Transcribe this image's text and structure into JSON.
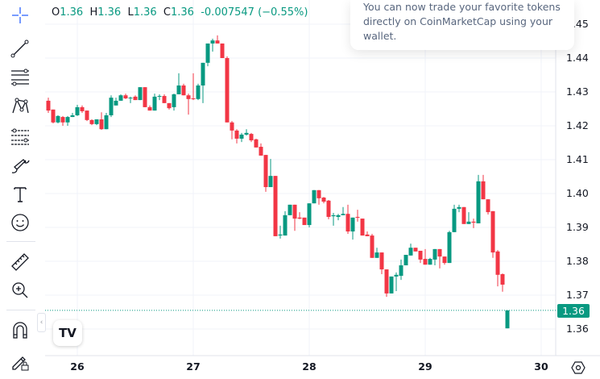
{
  "legend": {
    "o_label": "O",
    "o": "1.36",
    "h_label": "H",
    "h": "1.36",
    "l_label": "L",
    "l": "1.36",
    "c_label": "C",
    "c": "1.36",
    "change": "-0.007547 (−0.55%)"
  },
  "tooltip": {
    "lines": [
      "You can now trade your favorite tokens",
      "directly on CoinMarketCap using your",
      "wallet."
    ]
  },
  "toolbar": {
    "icons": [
      "crosshair-icon",
      "trend-line-icon",
      "fib-retracement-icon",
      "pattern-icon",
      "forecast-icon",
      "brush-icon",
      "text-icon",
      "emoji-icon",
      "ruler-icon",
      "zoom-in-icon",
      "magnet-icon",
      "lock-drawings-icon"
    ]
  },
  "colors": {
    "up": "#089981",
    "down": "#f23645",
    "grid": "#f0f3fa",
    "text": "#131722"
  },
  "last_price_label": "1.36",
  "logo_text": "TV",
  "chart_data": {
    "type": "candlestick",
    "interval": "1h",
    "y_ticks": [
      "1.45",
      "1.44",
      "1.43",
      "1.42",
      "1.41",
      "1.40",
      "1.39",
      "1.38",
      "1.37",
      "1.36"
    ],
    "ylim": [
      1.3585,
      1.4505
    ],
    "x_ticks": [
      {
        "label": "26",
        "index": 6
      },
      {
        "label": "27",
        "index": 30
      },
      {
        "label": "28",
        "index": 54
      },
      {
        "label": "29",
        "index": 78
      },
      {
        "label": "30",
        "index": 102
      }
    ],
    "last_price": 1.3655,
    "ohlc": [
      [
        1.4274,
        1.4283,
        1.4238,
        1.4245
      ],
      [
        1.4248,
        1.4248,
        1.4207,
        1.421
      ],
      [
        1.421,
        1.4231,
        1.4207,
        1.4229
      ],
      [
        1.4226,
        1.4229,
        1.42,
        1.421
      ],
      [
        1.421,
        1.4229,
        1.42,
        1.4226
      ],
      [
        1.4226,
        1.4238,
        1.4226,
        1.4231
      ],
      [
        1.4231,
        1.4262,
        1.4229,
        1.4255
      ],
      [
        1.4255,
        1.426,
        1.4238,
        1.4243
      ],
      [
        1.4245,
        1.4245,
        1.4214,
        1.4217
      ],
      [
        1.4217,
        1.4219,
        1.4202,
        1.4205
      ],
      [
        1.4205,
        1.4219,
        1.4202,
        1.4219
      ],
      [
        1.4219,
        1.424,
        1.4188,
        1.419
      ],
      [
        1.419,
        1.4238,
        1.419,
        1.4231
      ],
      [
        1.4231,
        1.429,
        1.4226,
        1.4283
      ],
      [
        1.426,
        1.4283,
        1.426,
        1.4274
      ],
      [
        1.4274,
        1.4293,
        1.4274,
        1.429
      ],
      [
        1.429,
        1.4295,
        1.4279,
        1.4281
      ],
      [
        1.4283,
        1.4286,
        1.4267,
        1.4283
      ],
      [
        1.4286,
        1.429,
        1.4276,
        1.4276
      ],
      [
        1.4276,
        1.4314,
        1.4276,
        1.4314
      ],
      [
        1.4314,
        1.4314,
        1.4255,
        1.4255
      ],
      [
        1.4255,
        1.426,
        1.4245,
        1.4245
      ],
      [
        1.4245,
        1.4295,
        1.4245,
        1.4286
      ],
      [
        1.4286,
        1.4293,
        1.4276,
        1.4288
      ],
      [
        1.4288,
        1.4293,
        1.4267,
        1.4267
      ],
      [
        1.4267,
        1.4267,
        1.4248,
        1.4252
      ],
      [
        1.4255,
        1.4295,
        1.4245,
        1.4293
      ],
      [
        1.4293,
        1.4355,
        1.4293,
        1.4319
      ],
      [
        1.4319,
        1.4324,
        1.429,
        1.429
      ],
      [
        1.429,
        1.4295,
        1.4233,
        1.4279
      ],
      [
        1.4281,
        1.4355,
        1.4276,
        1.4279
      ],
      [
        1.4279,
        1.4324,
        1.4276,
        1.4319
      ],
      [
        1.4319,
        1.4386,
        1.4267,
        1.4386
      ],
      [
        1.4386,
        1.4443,
        1.4376,
        1.4443
      ],
      [
        1.4443,
        1.4457,
        1.4419,
        1.4452
      ],
      [
        1.4452,
        1.4467,
        1.4443,
        1.4443
      ],
      [
        1.4443,
        1.4443,
        1.44,
        1.44
      ],
      [
        1.44,
        1.4405,
        1.421,
        1.421
      ],
      [
        1.421,
        1.4214,
        1.416,
        1.4186
      ],
      [
        1.4186,
        1.419,
        1.4148,
        1.4162
      ],
      [
        1.4162,
        1.4179,
        1.4152,
        1.4174
      ],
      [
        1.4174,
        1.419,
        1.4171,
        1.4179
      ],
      [
        1.4176,
        1.4179,
        1.4152,
        1.4157
      ],
      [
        1.416,
        1.4162,
        1.4136,
        1.4136
      ],
      [
        1.4138,
        1.4148,
        1.4112,
        1.4112
      ],
      [
        1.4114,
        1.4114,
        1.4005,
        1.4019
      ],
      [
        1.4019,
        1.4102,
        1.4019,
        1.4052
      ],
      [
        1.4052,
        1.4052,
        1.3874,
        1.3874
      ],
      [
        1.3876,
        1.3905,
        1.3867,
        1.3879
      ],
      [
        1.3876,
        1.3948,
        1.3876,
        1.3936
      ],
      [
        1.3936,
        1.3967,
        1.3936,
        1.3967
      ],
      [
        1.3967,
        1.3967,
        1.389,
        1.3926
      ],
      [
        1.3929,
        1.3945,
        1.3924,
        1.3926
      ],
      [
        1.3929,
        1.3929,
        1.3907,
        1.3907
      ],
      [
        1.3907,
        1.3971,
        1.39,
        1.3971
      ],
      [
        1.3971,
        1.401,
        1.3971,
        1.401
      ],
      [
        1.401,
        1.401,
        1.3967,
        1.3986
      ],
      [
        1.3988,
        1.399,
        1.3971,
        1.3976
      ],
      [
        1.3979,
        1.3981,
        1.3924,
        1.3931
      ],
      [
        1.3933,
        1.3943,
        1.3905,
        1.3936
      ],
      [
        1.3931,
        1.394,
        1.3921,
        1.3936
      ],
      [
        1.3936,
        1.396,
        1.3936,
        1.394
      ],
      [
        1.394,
        1.3967,
        1.3881,
        1.3888
      ],
      [
        1.3888,
        1.3929,
        1.3864,
        1.3929
      ],
      [
        1.3931,
        1.3952,
        1.3917,
        1.3929
      ],
      [
        1.3926,
        1.3926,
        1.3876,
        1.3876
      ],
      [
        1.3879,
        1.3888,
        1.3874,
        1.3874
      ],
      [
        1.3876,
        1.3881,
        1.381,
        1.381
      ],
      [
        1.381,
        1.384,
        1.381,
        1.3826
      ],
      [
        1.3826,
        1.3826,
        1.3762,
        1.3776
      ],
      [
        1.3776,
        1.3776,
        1.3695,
        1.3705
      ],
      [
        1.3705,
        1.3755,
        1.3705,
        1.3755
      ],
      [
        1.3755,
        1.3767,
        1.3712,
        1.376
      ],
      [
        1.3757,
        1.3805,
        1.3745,
        1.3788
      ],
      [
        1.3788,
        1.3819,
        1.3788,
        1.3819
      ],
      [
        1.3817,
        1.3852,
        1.3817,
        1.384
      ],
      [
        1.384,
        1.384,
        1.3829,
        1.3829
      ],
      [
        1.3831,
        1.3831,
        1.3795,
        1.3805
      ],
      [
        1.3807,
        1.3836,
        1.379,
        1.379
      ],
      [
        1.379,
        1.381,
        1.379,
        1.3807
      ],
      [
        1.3805,
        1.3836,
        1.3788,
        1.3836
      ],
      [
        1.3836,
        1.3836,
        1.3779,
        1.3814
      ],
      [
        1.3814,
        1.3814,
        1.379,
        1.3795
      ],
      [
        1.3795,
        1.389,
        1.3795,
        1.3886
      ],
      [
        1.3886,
        1.3967,
        1.3886,
        1.3955
      ],
      [
        1.3955,
        1.3967,
        1.3945,
        1.396
      ],
      [
        1.396,
        1.396,
        1.391,
        1.391
      ],
      [
        1.391,
        1.3945,
        1.391,
        1.3917
      ],
      [
        1.3917,
        1.3926,
        1.3898,
        1.3914
      ],
      [
        1.3912,
        1.4055,
        1.3912,
        1.4036
      ],
      [
        1.4036,
        1.4055,
        1.3983,
        1.3983
      ],
      [
        1.3983,
        1.3983,
        1.3938,
        1.3945
      ],
      [
        1.3948,
        1.3948,
        1.381,
        1.3826
      ],
      [
        1.3829,
        1.3833,
        1.3726,
        1.376
      ],
      [
        1.3762,
        1.3764,
        1.371,
        1.3731
      ],
      [
        1.3602,
        1.3655,
        1.3602,
        1.3655
      ]
    ]
  }
}
